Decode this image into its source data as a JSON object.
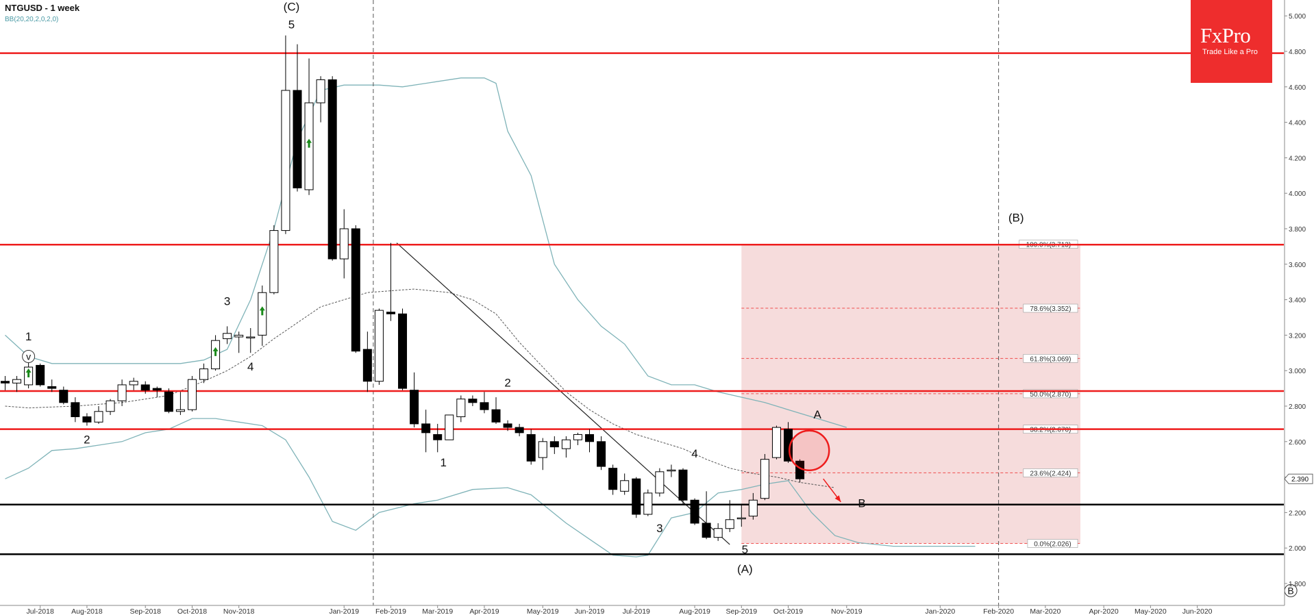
{
  "chart_header": {
    "symbol_title": "NTGUSD - 1 week",
    "indicator": "BB(20,20,2,0,2,0)"
  },
  "brand": {
    "name": "FxPro",
    "tagline": "Trade Like a Pro"
  },
  "colors": {
    "bull_candle": "#ffffff",
    "bear_candle": "#000000",
    "bollinger_bands": "#7fb3b8",
    "bollinger_mid": "#555555",
    "resistance_lines": "#ee1c1c",
    "support_lines": "#000000",
    "fib_zone": "#f6dcdc",
    "brand": "#ee2d2d",
    "arrows": "#1a8a1a"
  },
  "chart_data": {
    "type": "candlestick",
    "timeframe": "1 week",
    "ylim": [
      1.7,
      5.0
    ],
    "y_ticks": [
      "1.800",
      "2.000",
      "2.200",
      "2.400",
      "2.600",
      "2.800",
      "3.000",
      "3.200",
      "3.400",
      "3.600",
      "3.800",
      "4.000",
      "4.200",
      "4.400",
      "4.600",
      "4.800",
      "5.000"
    ],
    "x_ticks": [
      "Jul-2018",
      "Aug-2018",
      "Sep-2018",
      "Oct-2018",
      "Nov-2018",
      "Jan-2019",
      "Feb-2019",
      "Mar-2019",
      "Apr-2019",
      "May-2019",
      "Jun-2019",
      "Jul-2019",
      "Aug-2019",
      "Sep-2019",
      "Oct-2019",
      "Nov-2019",
      "Jan-2020",
      "Feb-2020",
      "Mar-2020",
      "Apr-2020",
      "May-2020",
      "Jun-2020"
    ],
    "x_tick_index": [
      3,
      7,
      12,
      16,
      20,
      29,
      33,
      37,
      41,
      46,
      50,
      54,
      59,
      63,
      67,
      72,
      80,
      85,
      89,
      94,
      98,
      102
    ],
    "candles": [
      {
        "o": 2.94,
        "h": 2.97,
        "l": 2.89,
        "c": 2.93
      },
      {
        "o": 2.93,
        "h": 2.97,
        "l": 2.88,
        "c": 2.95
      },
      {
        "o": 2.92,
        "h": 3.05,
        "l": 2.9,
        "c": 3.02
      },
      {
        "o": 3.03,
        "h": 3.04,
        "l": 2.91,
        "c": 2.92
      },
      {
        "o": 2.91,
        "h": 2.95,
        "l": 2.88,
        "c": 2.9
      },
      {
        "o": 2.89,
        "h": 2.91,
        "l": 2.81,
        "c": 2.82
      },
      {
        "o": 2.82,
        "h": 2.85,
        "l": 2.71,
        "c": 2.74
      },
      {
        "o": 2.74,
        "h": 2.76,
        "l": 2.69,
        "c": 2.71
      },
      {
        "o": 2.71,
        "h": 2.8,
        "l": 2.7,
        "c": 2.77
      },
      {
        "o": 2.77,
        "h": 2.84,
        "l": 2.75,
        "c": 2.83
      },
      {
        "o": 2.83,
        "h": 2.95,
        "l": 2.8,
        "c": 2.92
      },
      {
        "o": 2.92,
        "h": 2.96,
        "l": 2.89,
        "c": 2.94
      },
      {
        "o": 2.92,
        "h": 2.94,
        "l": 2.87,
        "c": 2.89
      },
      {
        "o": 2.9,
        "h": 2.91,
        "l": 2.85,
        "c": 2.89
      },
      {
        "o": 2.88,
        "h": 2.9,
        "l": 2.76,
        "c": 2.77
      },
      {
        "o": 2.77,
        "h": 2.88,
        "l": 2.75,
        "c": 2.78
      },
      {
        "o": 2.78,
        "h": 2.97,
        "l": 2.77,
        "c": 2.95
      },
      {
        "o": 2.95,
        "h": 3.04,
        "l": 2.93,
        "c": 3.01
      },
      {
        "o": 3.01,
        "h": 3.2,
        "l": 3.0,
        "c": 3.17
      },
      {
        "o": 3.18,
        "h": 3.25,
        "l": 3.15,
        "c": 3.21
      },
      {
        "o": 3.19,
        "h": 3.22,
        "l": 3.1,
        "c": 3.2
      },
      {
        "o": 3.19,
        "h": 3.24,
        "l": 3.1,
        "c": 3.19
      },
      {
        "o": 3.2,
        "h": 3.48,
        "l": 3.14,
        "c": 3.44
      },
      {
        "o": 3.44,
        "h": 3.82,
        "l": 3.43,
        "c": 3.79
      },
      {
        "o": 3.79,
        "h": 4.89,
        "l": 3.77,
        "c": 4.58
      },
      {
        "o": 4.58,
        "h": 4.84,
        "l": 4.01,
        "c": 4.03
      },
      {
        "o": 4.02,
        "h": 4.76,
        "l": 3.99,
        "c": 4.51
      },
      {
        "o": 4.51,
        "h": 4.66,
        "l": 4.4,
        "c": 4.64
      },
      {
        "o": 4.64,
        "h": 4.66,
        "l": 3.62,
        "c": 3.63
      },
      {
        "o": 3.63,
        "h": 3.91,
        "l": 3.52,
        "c": 3.8
      },
      {
        "o": 3.8,
        "h": 3.82,
        "l": 3.1,
        "c": 3.11
      },
      {
        "o": 3.12,
        "h": 3.22,
        "l": 2.88,
        "c": 2.94
      },
      {
        "o": 2.94,
        "h": 3.35,
        "l": 2.92,
        "c": 3.34
      },
      {
        "o": 3.33,
        "h": 3.72,
        "l": 3.28,
        "c": 3.32
      },
      {
        "o": 3.32,
        "h": 3.35,
        "l": 2.89,
        "c": 2.9
      },
      {
        "o": 2.89,
        "h": 2.99,
        "l": 2.68,
        "c": 2.7
      },
      {
        "o": 2.7,
        "h": 2.78,
        "l": 2.54,
        "c": 2.65
      },
      {
        "o": 2.64,
        "h": 2.7,
        "l": 2.54,
        "c": 2.61
      },
      {
        "o": 2.61,
        "h": 2.75,
        "l": 2.61,
        "c": 2.75
      },
      {
        "o": 2.74,
        "h": 2.86,
        "l": 2.71,
        "c": 2.84
      },
      {
        "o": 2.84,
        "h": 2.86,
        "l": 2.8,
        "c": 2.82
      },
      {
        "o": 2.82,
        "h": 2.88,
        "l": 2.76,
        "c": 2.78
      },
      {
        "o": 2.78,
        "h": 2.85,
        "l": 2.7,
        "c": 2.71
      },
      {
        "o": 2.7,
        "h": 2.72,
        "l": 2.66,
        "c": 2.68
      },
      {
        "o": 2.68,
        "h": 2.7,
        "l": 2.63,
        "c": 2.65
      },
      {
        "o": 2.64,
        "h": 2.67,
        "l": 2.47,
        "c": 2.49
      },
      {
        "o": 2.51,
        "h": 2.62,
        "l": 2.44,
        "c": 2.6
      },
      {
        "o": 2.6,
        "h": 2.63,
        "l": 2.53,
        "c": 2.57
      },
      {
        "o": 2.56,
        "h": 2.63,
        "l": 2.51,
        "c": 2.61
      },
      {
        "o": 2.61,
        "h": 2.65,
        "l": 2.58,
        "c": 2.64
      },
      {
        "o": 2.64,
        "h": 2.67,
        "l": 2.54,
        "c": 2.6
      },
      {
        "o": 2.6,
        "h": 2.63,
        "l": 2.44,
        "c": 2.46
      },
      {
        "o": 2.45,
        "h": 2.47,
        "l": 2.3,
        "c": 2.33
      },
      {
        "o": 2.32,
        "h": 2.42,
        "l": 2.3,
        "c": 2.38
      },
      {
        "o": 2.39,
        "h": 2.4,
        "l": 2.17,
        "c": 2.19
      },
      {
        "o": 2.19,
        "h": 2.33,
        "l": 2.18,
        "c": 2.31
      },
      {
        "o": 2.31,
        "h": 2.45,
        "l": 2.29,
        "c": 2.43
      },
      {
        "o": 2.44,
        "h": 2.47,
        "l": 2.4,
        "c": 2.44
      },
      {
        "o": 2.44,
        "h": 2.45,
        "l": 2.25,
        "c": 2.27
      },
      {
        "o": 2.27,
        "h": 2.28,
        "l": 2.13,
        "c": 2.14
      },
      {
        "o": 2.14,
        "h": 2.32,
        "l": 2.05,
        "c": 2.06
      },
      {
        "o": 2.06,
        "h": 2.14,
        "l": 2.04,
        "c": 2.11
      },
      {
        "o": 2.11,
        "h": 2.27,
        "l": 2.09,
        "c": 2.16
      },
      {
        "o": 2.17,
        "h": 2.25,
        "l": 2.12,
        "c": 2.17
      },
      {
        "o": 2.18,
        "h": 2.31,
        "l": 2.16,
        "c": 2.27
      },
      {
        "o": 2.28,
        "h": 2.53,
        "l": 2.27,
        "c": 2.5
      },
      {
        "o": 2.51,
        "h": 2.69,
        "l": 2.5,
        "c": 2.68
      },
      {
        "o": 2.67,
        "h": 2.71,
        "l": 2.48,
        "c": 2.49
      },
      {
        "o": 2.49,
        "h": 2.5,
        "l": 2.37,
        "c": 2.39
      }
    ],
    "bollinger": {
      "upper": [
        [
          0,
          3.2
        ],
        [
          2,
          3.08
        ],
        [
          4,
          3.04
        ],
        [
          10,
          3.04
        ],
        [
          15,
          3.04
        ],
        [
          17,
          3.06
        ],
        [
          19,
          3.12
        ],
        [
          21,
          3.4
        ],
        [
          23,
          3.8
        ],
        [
          25,
          4.3
        ],
        [
          27,
          4.58
        ],
        [
          29,
          4.61
        ],
        [
          32,
          4.61
        ],
        [
          34,
          4.6
        ],
        [
          36,
          4.62
        ],
        [
          39,
          4.65
        ],
        [
          41,
          4.65
        ],
        [
          42,
          4.62
        ],
        [
          43,
          4.35
        ],
        [
          45,
          4.1
        ],
        [
          47,
          3.6
        ],
        [
          49,
          3.4
        ],
        [
          51,
          3.25
        ],
        [
          53,
          3.15
        ],
        [
          55,
          2.97
        ],
        [
          57,
          2.92
        ],
        [
          59,
          2.92
        ],
        [
          61,
          2.88
        ],
        [
          63,
          2.85
        ],
        [
          65,
          2.82
        ],
        [
          67,
          2.78
        ],
        [
          70,
          2.72
        ],
        [
          72,
          2.68
        ]
      ],
      "middle": [
        [
          0,
          2.8
        ],
        [
          2,
          2.79
        ],
        [
          6,
          2.8
        ],
        [
          10,
          2.82
        ],
        [
          14,
          2.86
        ],
        [
          17,
          2.94
        ],
        [
          19,
          3.0
        ],
        [
          21,
          3.08
        ],
        [
          23,
          3.18
        ],
        [
          25,
          3.27
        ],
        [
          27,
          3.36
        ],
        [
          29,
          3.4
        ],
        [
          31,
          3.44
        ],
        [
          33,
          3.45
        ],
        [
          35,
          3.46
        ],
        [
          38,
          3.44
        ],
        [
          40,
          3.4
        ],
        [
          42,
          3.32
        ],
        [
          44,
          3.16
        ],
        [
          46,
          3.02
        ],
        [
          48,
          2.88
        ],
        [
          50,
          2.78
        ],
        [
          52,
          2.7
        ],
        [
          54,
          2.64
        ],
        [
          56,
          2.6
        ],
        [
          58,
          2.56
        ],
        [
          60,
          2.5
        ],
        [
          62,
          2.45
        ],
        [
          64,
          2.42
        ],
        [
          66,
          2.4
        ],
        [
          68,
          2.37
        ],
        [
          70,
          2.35
        ],
        [
          71,
          2.34
        ]
      ],
      "lower": [
        [
          0,
          2.39
        ],
        [
          2,
          2.45
        ],
        [
          4,
          2.55
        ],
        [
          6,
          2.56
        ],
        [
          8,
          2.58
        ],
        [
          10,
          2.6
        ],
        [
          12,
          2.65
        ],
        [
          14,
          2.67
        ],
        [
          16,
          2.73
        ],
        [
          18,
          2.73
        ],
        [
          20,
          2.71
        ],
        [
          22,
          2.69
        ],
        [
          24,
          2.61
        ],
        [
          26,
          2.4
        ],
        [
          28,
          2.15
        ],
        [
          30,
          2.1
        ],
        [
          32,
          2.2
        ],
        [
          35,
          2.25
        ],
        [
          37,
          2.27
        ],
        [
          40,
          2.33
        ],
        [
          43,
          2.34
        ],
        [
          45,
          2.3
        ],
        [
          48,
          2.14
        ],
        [
          50,
          2.05
        ],
        [
          52,
          1.96
        ],
        [
          54,
          1.95
        ],
        [
          55,
          1.96
        ],
        [
          57,
          2.17
        ],
        [
          59,
          2.2
        ],
        [
          61,
          2.31
        ],
        [
          63,
          2.33
        ],
        [
          65,
          2.36
        ],
        [
          67,
          2.38
        ],
        [
          69,
          2.2
        ],
        [
          71,
          2.07
        ],
        [
          73,
          2.03
        ],
        [
          76,
          2.01
        ],
        [
          80,
          2.01
        ],
        [
          83,
          2.01
        ]
      ]
    },
    "horizontal_levels": [
      {
        "price": 4.79,
        "role": "resistance"
      },
      {
        "price": 3.71,
        "role": "resistance"
      },
      {
        "price": 2.885,
        "role": "resistance"
      },
      {
        "price": 2.67,
        "role": "resistance"
      },
      {
        "price": 2.245,
        "role": "support"
      },
      {
        "price": 1.965,
        "role": "support"
      }
    ],
    "fibonacci": {
      "start_index": 63,
      "end_index": 92,
      "levels": [
        {
          "label": "100.0%(3.713)",
          "price": 3.713
        },
        {
          "label": "78.6%(3.352)",
          "price": 3.352
        },
        {
          "label": "61.8%(3.069)",
          "price": 3.069
        },
        {
          "label": "50.0%(2.870)",
          "price": 2.87
        },
        {
          "label": "38.2%(2.670)",
          "price": 2.67
        },
        {
          "label": "23.6%(2.424)",
          "price": 2.424
        },
        {
          "label": "0.0%(2.026)",
          "price": 2.026
        }
      ]
    },
    "trendline": {
      "from": [
        33.5,
        3.72
      ],
      "to": [
        62,
        2.02
      ]
    },
    "vertical_markers": [
      31.5,
      85
    ],
    "wave_labels": [
      {
        "text": "1",
        "index": 2,
        "price": 3.17
      },
      {
        "text": "2",
        "index": 7,
        "price": 2.59
      },
      {
        "text": "3",
        "index": 19,
        "price": 3.37
      },
      {
        "text": "4",
        "index": 21,
        "price": 3.0
      },
      {
        "text": "5",
        "index": 24.5,
        "price": 4.93
      },
      {
        "text": "(C)",
        "index": 24.5,
        "price": 5.03
      },
      {
        "text": "1",
        "index": 37.5,
        "price": 2.46
      },
      {
        "text": "2",
        "index": 43,
        "price": 2.91
      },
      {
        "text": "3",
        "index": 56,
        "price": 2.09
      },
      {
        "text": "4",
        "index": 59,
        "price": 2.51
      },
      {
        "text": "5",
        "index": 63.3,
        "price": 1.97
      },
      {
        "text": "(A)",
        "index": 63.3,
        "price": 1.86
      },
      {
        "text": "A",
        "index": 69.5,
        "price": 2.73
      },
      {
        "text": "B",
        "index": 73.3,
        "price": 2.23
      },
      {
        "text": "(B)",
        "index": 86.5,
        "price": 3.84
      }
    ],
    "circled_marks": [
      {
        "text": "v",
        "index": 2,
        "price": 3.08
      },
      {
        "text": "B",
        "index": 110,
        "price": 1.76
      }
    ],
    "highlight_circle": {
      "index": 68.8,
      "price": 2.55
    },
    "forecast_arrow": {
      "from": [
        70,
        2.39
      ],
      "to": [
        71.5,
        2.26
      ]
    },
    "signal_arrows": [
      2,
      18,
      22,
      26
    ],
    "current_price": "2.390"
  }
}
